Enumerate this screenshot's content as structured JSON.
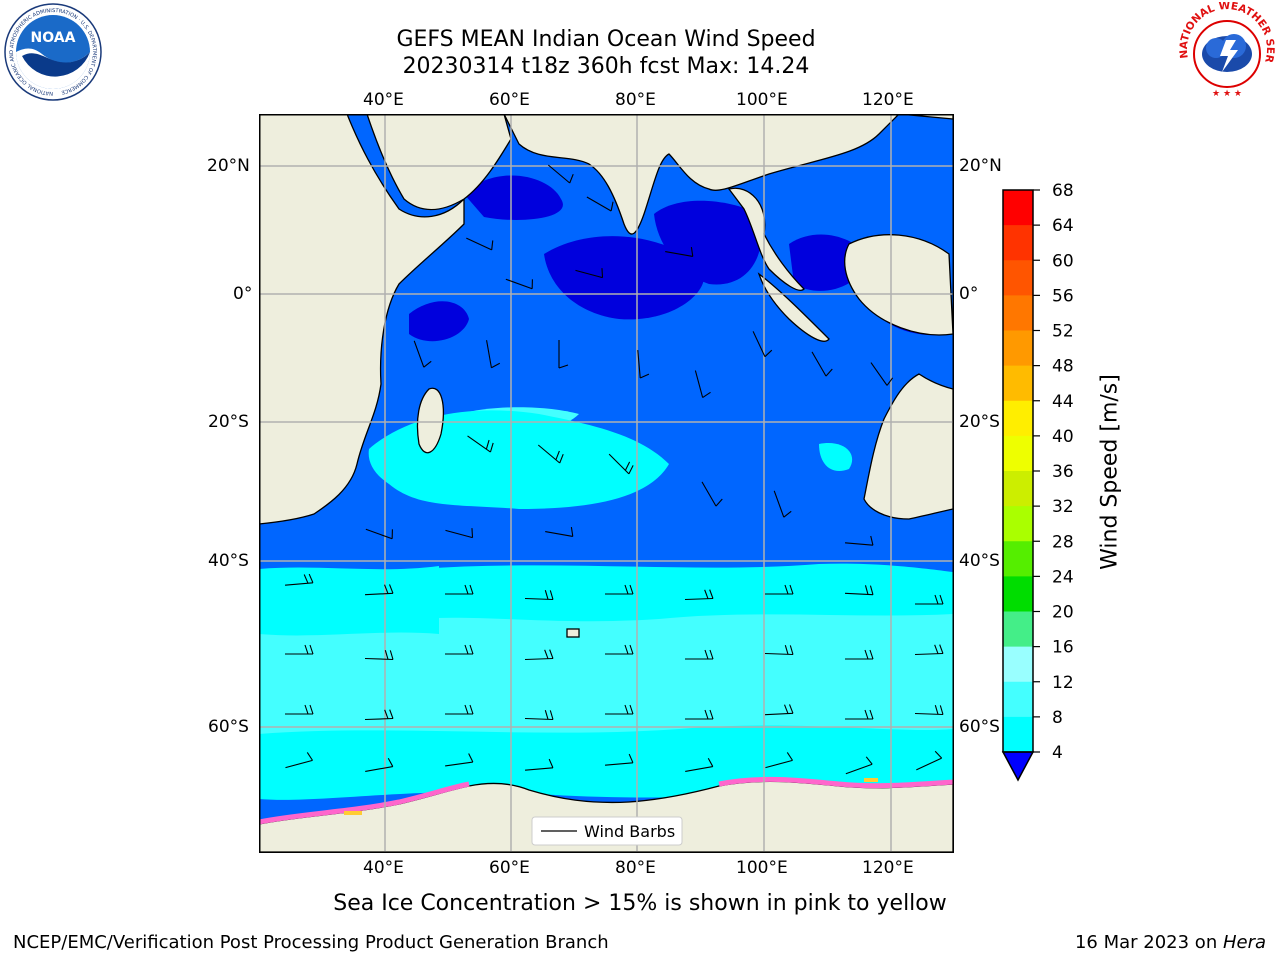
{
  "title": {
    "line1": "GEFS MEAN Indian Ocean Wind Speed",
    "line2": "20230314 t18z 360h fcst   Max: 14.24"
  },
  "map": {
    "lon_labels": [
      "40°E",
      "60°E",
      "80°E",
      "100°E",
      "120°E"
    ],
    "lat_labels_left": [
      "20°N",
      "0°",
      "20°S",
      "40°S",
      "60°S"
    ],
    "lat_labels_right": [
      "20°N",
      "0°",
      "20°S",
      "40°S",
      "60°S"
    ],
    "legend_label": "Wind Barbs"
  },
  "colorbar": {
    "label": "Wind Speed [m/s]",
    "ticks": [
      "68",
      "64",
      "60",
      "56",
      "52",
      "48",
      "44",
      "40",
      "36",
      "32",
      "28",
      "24",
      "20",
      "16",
      "12",
      "8",
      "4"
    ],
    "colors": [
      "#ff0000",
      "#ff3300",
      "#ff5500",
      "#ff7700",
      "#ff9900",
      "#ffbb00",
      "#ffee00",
      "#eeff00",
      "#ccee00",
      "#aaff00",
      "#55ee00",
      "#00dd00",
      "#44ee88",
      "#99ffff",
      "#44ffff",
      "#00ffff",
      "#0066ff"
    ],
    "extend_color": "#0000ff"
  },
  "colors": {
    "land": "#eeeedd",
    "ocean_4_8": "#0066ff",
    "ocean_lt4": "#0000dd",
    "ocean_8_12": "#00ffff",
    "ocean_12_16": "#44ffff",
    "sea_ice": "#ff66cc"
  },
  "caption": "Sea Ice Concentration > 15% is shown in pink to yellow",
  "footer": {
    "left": "NCEP/EMC/Verification Post Processing Product Generation Branch",
    "right_prefix": "16 Mar 2023 on ",
    "right_machine": "Hera"
  },
  "logos": {
    "noaa_text": "NOAA",
    "noaa_ring": "NATIONAL OCEANIC AND ATMOSPHERIC ADMINISTRATION · U.S. DEPARTMENT OF COMMERCE",
    "nws_ring": "NATIONAL WEATHER SERVICE"
  }
}
